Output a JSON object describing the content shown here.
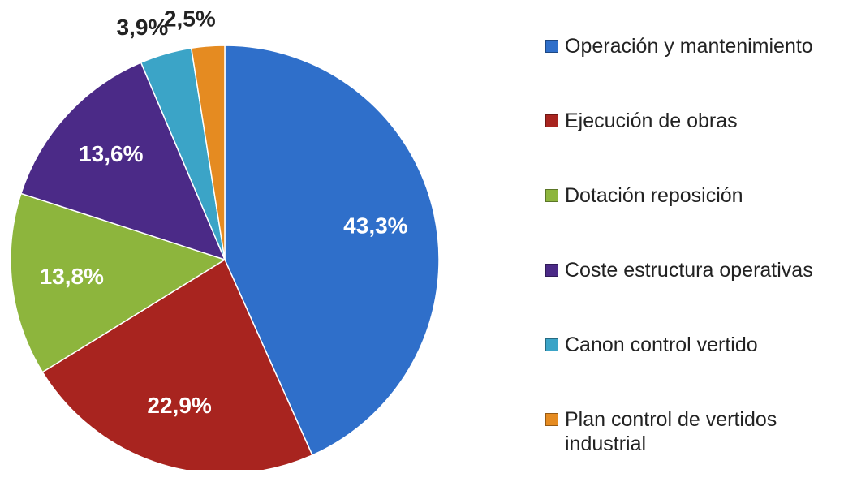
{
  "chart_data": {
    "type": "pie",
    "categories": [
      "Operación y mantenimiento",
      "Ejecución de obras",
      "Dotación reposición",
      "Coste estructura operativas",
      "Canon control vertido",
      "Plan control de vertidos industrial"
    ],
    "values": [
      43.3,
      22.9,
      13.8,
      13.6,
      3.9,
      2.5
    ],
    "value_labels": [
      "43,3%",
      "22,9%",
      "13,8%",
      "13,6%",
      "3,9%",
      "2,5%"
    ],
    "colors": [
      "#2f6fca",
      "#a8241f",
      "#8db53d",
      "#4b2a87",
      "#3ba4c7",
      "#e58b21"
    ],
    "legend": "right"
  }
}
